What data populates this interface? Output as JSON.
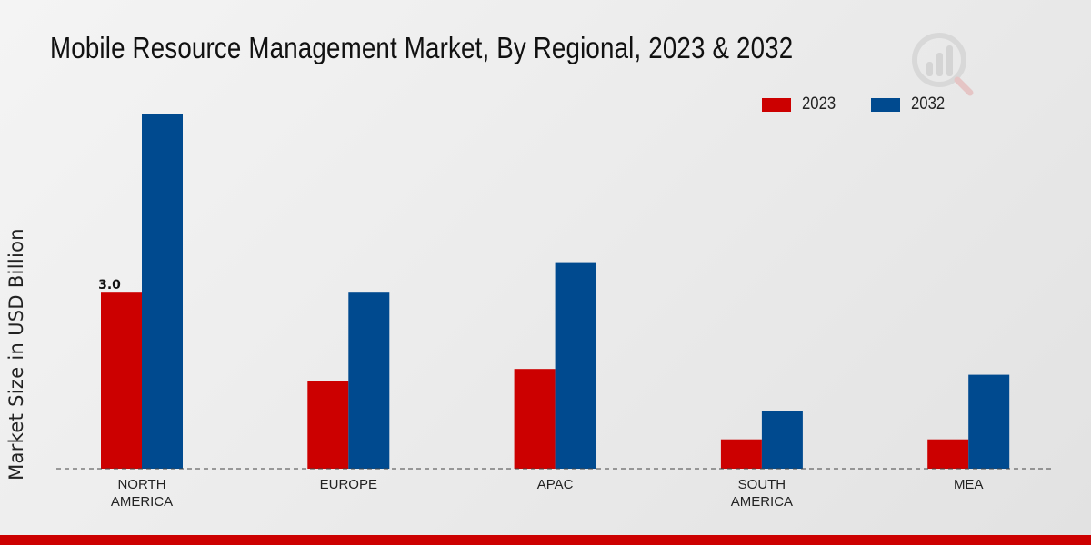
{
  "chart_data": {
    "type": "bar",
    "title": "Mobile Resource Management Market, By Regional, 2023 & 2032",
    "xlabel": "",
    "ylabel": "Market Size in USD Billion",
    "categories": [
      "NORTH\nAMERICA",
      "EUROPE",
      "APAC",
      "SOUTH\nAMERICA",
      "MEA"
    ],
    "series": [
      {
        "name": "2023",
        "color": "#cc0000",
        "values": [
          3.0,
          1.5,
          1.7,
          0.5,
          0.5
        ]
      },
      {
        "name": "2032",
        "color": "#004a8f",
        "values": [
          6.05,
          3.0,
          3.52,
          0.98,
          1.6
        ]
      }
    ],
    "data_labels": [
      {
        "series": 0,
        "index": 0,
        "text": "3.0"
      }
    ],
    "ylim": [
      0,
      6.5
    ],
    "grid": false,
    "legend": "top-right"
  }
}
